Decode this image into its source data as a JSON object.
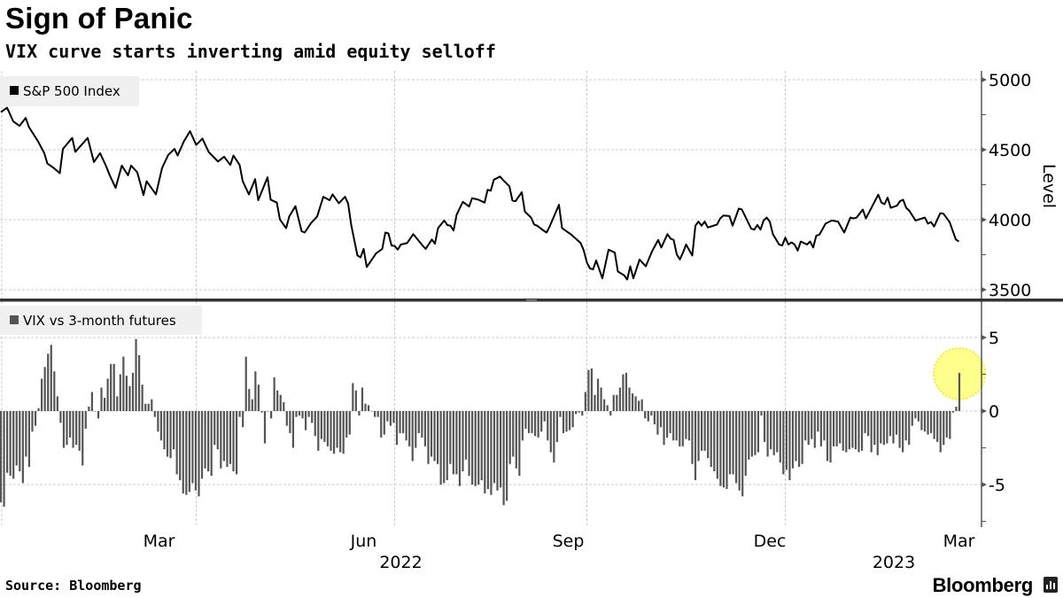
{
  "header": {
    "title": "Sign of Panic",
    "subtitle": "VIX curve starts inverting amid equity selloff"
  },
  "footer": {
    "source": "Source: Bloomberg",
    "brand": "Bloomberg"
  },
  "colors": {
    "line": "#000000",
    "bars": "#555555",
    "highlight": "#ffff66",
    "legend_bg": "#f0f0f0",
    "divider": "#333333"
  },
  "chart_data": [
    {
      "type": "line",
      "legend": "S&P 500 Index",
      "ylabel": "Level",
      "ylim": [
        3450,
        5040
      ],
      "yticks": [
        3500,
        4000,
        4500,
        5000
      ],
      "x_unit": "trading days since Jan 3, 2022",
      "points": [
        [
          0,
          4769
        ],
        [
          2,
          4800
        ],
        [
          4,
          4702
        ],
        [
          6,
          4670
        ],
        [
          8,
          4727
        ],
        [
          9,
          4664
        ],
        [
          12,
          4559
        ],
        [
          14,
          4475
        ],
        [
          15,
          4401
        ],
        [
          17,
          4370
        ],
        [
          19,
          4332
        ],
        [
          20,
          4506
        ],
        [
          23,
          4584
        ],
        [
          24,
          4485
        ],
        [
          28,
          4584
        ],
        [
          30,
          4412
        ],
        [
          32,
          4475
        ],
        [
          34,
          4380
        ],
        [
          35,
          4323
        ],
        [
          37,
          4227
        ],
        [
          39,
          4387
        ],
        [
          41,
          4317
        ],
        [
          42,
          4387
        ],
        [
          44,
          4338
        ],
        [
          46,
          4176
        ],
        [
          47,
          4275
        ],
        [
          50,
          4181
        ],
        [
          52,
          4370
        ],
        [
          54,
          4464
        ],
        [
          56,
          4506
        ],
        [
          57,
          4458
        ],
        [
          59,
          4559
        ],
        [
          61,
          4632
        ],
        [
          63,
          4534
        ],
        [
          65,
          4580
        ],
        [
          67,
          4485
        ],
        [
          70,
          4416
        ],
        [
          72,
          4450
        ],
        [
          74,
          4391
        ],
        [
          75,
          4458
        ],
        [
          77,
          4391
        ],
        [
          78,
          4275
        ],
        [
          80,
          4181
        ],
        [
          82,
          4290
        ],
        [
          83,
          4139
        ],
        [
          86,
          4303
        ],
        [
          87,
          4143
        ],
        [
          89,
          4122
        ],
        [
          90,
          4002
        ],
        [
          92,
          3939
        ],
        [
          93,
          4023
        ],
        [
          95,
          4097
        ],
        [
          97,
          3918
        ],
        [
          98,
          3908
        ],
        [
          100,
          3975
        ],
        [
          102,
          4023
        ],
        [
          104,
          4164
        ],
        [
          106,
          4139
        ],
        [
          107,
          4181
        ],
        [
          109,
          4118
        ],
        [
          111,
          4164
        ],
        [
          112,
          4115
        ],
        [
          113,
          3962
        ],
        [
          115,
          3744
        ],
        [
          116,
          3731
        ],
        [
          117,
          3791
        ],
        [
          118,
          3662
        ],
        [
          121,
          3759
        ],
        [
          123,
          3791
        ],
        [
          124,
          3908
        ],
        [
          125,
          3902
        ],
        [
          126,
          3816
        ],
        [
          127,
          3812
        ],
        [
          128,
          3786
        ],
        [
          129,
          3823
        ],
        [
          131,
          3833
        ],
        [
          133,
          3897
        ],
        [
          136,
          3816
        ],
        [
          137,
          3791
        ],
        [
          139,
          3859
        ],
        [
          140,
          3829
        ],
        [
          141,
          3940
        ],
        [
          143,
          3994
        ],
        [
          144,
          3962
        ],
        [
          145,
          3957
        ],
        [
          146,
          3923
        ],
        [
          147,
          4036
        ],
        [
          149,
          4128
        ],
        [
          151,
          4094
        ],
        [
          152,
          4154
        ],
        [
          154,
          4143
        ],
        [
          156,
          4122
        ],
        [
          157,
          4214
        ],
        [
          158,
          4207
        ],
        [
          159,
          4286
        ],
        [
          161,
          4308
        ],
        [
          162,
          4282
        ],
        [
          164,
          4239
        ],
        [
          165,
          4137
        ],
        [
          166,
          4132
        ],
        [
          168,
          4197
        ],
        [
          169,
          4058
        ],
        [
          171,
          4015
        ],
        [
          172,
          3966
        ],
        [
          173,
          3957
        ],
        [
          175,
          3923
        ],
        [
          176,
          3908
        ],
        [
          177,
          3951
        ],
        [
          180,
          4107
        ],
        [
          181,
          3940
        ],
        [
          184,
          3893
        ],
        [
          187,
          3833
        ],
        [
          188,
          3780
        ],
        [
          189,
          3694
        ],
        [
          190,
          3652
        ],
        [
          191,
          3645
        ],
        [
          192,
          3709
        ],
        [
          194,
          3581
        ],
        [
          196,
          3786
        ],
        [
          198,
          3765
        ],
        [
          199,
          3630
        ],
        [
          201,
          3603
        ],
        [
          202,
          3573
        ],
        [
          203,
          3667
        ],
        [
          204,
          3581
        ],
        [
          206,
          3716
        ],
        [
          208,
          3667
        ],
        [
          210,
          3773
        ],
        [
          212,
          3855
        ],
        [
          213,
          3801
        ],
        [
          215,
          3897
        ],
        [
          216,
          3865
        ],
        [
          217,
          3855
        ],
        [
          218,
          3752
        ],
        [
          219,
          3716
        ],
        [
          220,
          3765
        ],
        [
          221,
          3823
        ],
        [
          223,
          3744
        ],
        [
          224,
          3957
        ],
        [
          225,
          3987
        ],
        [
          226,
          3957
        ],
        [
          227,
          3987
        ],
        [
          228,
          3944
        ],
        [
          231,
          3966
        ],
        [
          232,
          4009
        ],
        [
          233,
          4030
        ],
        [
          235,
          4026
        ],
        [
          236,
          3957
        ],
        [
          238,
          4079
        ],
        [
          239,
          4073
        ],
        [
          242,
          3936
        ],
        [
          243,
          3929
        ],
        [
          244,
          3962
        ],
        [
          245,
          3929
        ],
        [
          246,
          3994
        ],
        [
          247,
          4015
        ],
        [
          248,
          3987
        ],
        [
          249,
          3897
        ],
        [
          251,
          3823
        ],
        [
          252,
          3816
        ],
        [
          253,
          3872
        ],
        [
          254,
          3823
        ],
        [
          255,
          3838
        ],
        [
          256,
          3823
        ],
        [
          257,
          3780
        ],
        [
          258,
          3844
        ],
        [
          260,
          3823
        ],
        [
          261,
          3844
        ],
        [
          262,
          3801
        ],
        [
          263,
          3887
        ],
        [
          264,
          3893
        ],
        [
          266,
          3972
        ],
        [
          268,
          3994
        ],
        [
          270,
          3987
        ],
        [
          272,
          3908
        ],
        [
          274,
          4015
        ],
        [
          275,
          4009
        ],
        [
          276,
          4015
        ],
        [
          278,
          4073
        ],
        [
          279,
          4009
        ],
        [
          281,
          4094
        ],
        [
          282,
          4137
        ],
        [
          283,
          4179
        ],
        [
          284,
          4122
        ],
        [
          285,
          4111
        ],
        [
          286,
          4158
        ],
        [
          287,
          4085
        ],
        [
          289,
          4100
        ],
        [
          290,
          4132
        ],
        [
          291,
          4143
        ],
        [
          292,
          4085
        ],
        [
          293,
          4064
        ],
        [
          295,
          3994
        ],
        [
          298,
          4015
        ],
        [
          299,
          3972
        ],
        [
          300,
          3983
        ],
        [
          301,
          3951
        ],
        [
          303,
          4047
        ],
        [
          304,
          4043
        ],
        [
          306,
          3983
        ],
        [
          308,
          3859
        ],
        [
          309,
          3844
        ]
      ]
    },
    {
      "type": "bar",
      "legend": "VIX vs 3-month futures",
      "ylim": [
        -7.6,
        7.5
      ],
      "yticks": [
        -5,
        0,
        5
      ],
      "x_unit": "trading days since Jan 3, 2022",
      "highlighted_last_value": 2.6,
      "values": [
        -6.2,
        -6.5,
        -4.2,
        -4.4,
        -4.6,
        -3.7,
        -4.1,
        -4.9,
        -3.1,
        -3.8,
        -1.4,
        -1.0,
        0.2,
        2.2,
        3.0,
        3.9,
        4.5,
        2.7,
        1.0,
        -0.8,
        -2.5,
        -2.3,
        -1.8,
        -2.5,
        -2.3,
        -2.7,
        -3.7,
        -1.2,
        0.3,
        1.3,
        0,
        -0.5,
        1.6,
        0.9,
        2.2,
        3.2,
        3.2,
        1.0,
        2.5,
        3.7,
        2.4,
        1.7,
        2.6,
        4.9,
        3.8,
        1.8,
        0.5,
        0.5,
        0.8,
        -0.4,
        -1.4,
        -2.0,
        -2.6,
        -3.1,
        -3.2,
        -2.6,
        -4.3,
        -4.7,
        -5.6,
        -5.7,
        -5.5,
        -4.9,
        -5.4,
        -5.8,
        -4.6,
        -3.9,
        -4.1,
        -4.4,
        -2.3,
        -2.6,
        -3.9,
        -3.4,
        -3.8,
        -3.6,
        -4.1,
        -4.3,
        -0.4,
        -1.1,
        3.7,
        1.5,
        0.8,
        2.7,
        1.8,
        -0.1,
        -2.2,
        0,
        -0.5,
        2.3,
        1.4,
        1.1,
        0.6,
        -1.0,
        -1.5,
        -2.5,
        -0.4,
        -0.3,
        -0.5,
        -1.3,
        -0.4,
        -0.8,
        -1.7,
        -2.7,
        -1.9,
        -2.1,
        -2.4,
        -2.7,
        -2.9,
        -2.5,
        -2.8,
        -2.9,
        -1.8,
        -1.6,
        1.9,
        1.4,
        -0.3,
        1.6,
        0.5,
        0.4,
        0,
        -0.4,
        -0.4,
        -1.8,
        -1.6,
        -0.7,
        -1.0,
        -0.8,
        -2.3,
        -1.5,
        -1.5,
        -2.0,
        -2.4,
        -3.4,
        -2.5,
        -1.5,
        -1.8,
        -2.4,
        -3.6,
        -3.1,
        -3.4,
        -3.6,
        -5.0,
        -4.9,
        -4.7,
        -3.6,
        -4.3,
        -4.3,
        -5.1,
        -4.1,
        -3.3,
        -4.4,
        -5.0,
        -5.1,
        -5.0,
        -4.7,
        -5.6,
        -5.3,
        -5.7,
        -4.9,
        -5.4,
        -5.2,
        -6.4,
        -6.1,
        -3.6,
        -3.1,
        -3.9,
        -4.4,
        -2.0,
        -1.2,
        -1.5,
        -1.5,
        -1.7,
        -1.8,
        -1.4,
        -0.7,
        -2.0,
        -2.8,
        -3.5,
        -2.1,
        -0.4,
        -1.5,
        -1.4,
        -1.3,
        -1.1,
        -0.2,
        -0.1,
        -0.3,
        1.3,
        2.8,
        2.9,
        1.1,
        2.2,
        1.6,
        0.8,
        0.4,
        -0.3,
        1.1,
        1.1,
        1.6,
        2.5,
        2.6,
        1.6,
        1.2,
        1.0,
        0.7,
        0.8,
        -0.5,
        -0.7,
        -0.3,
        -0.9,
        -1.6,
        -1.1,
        -2.3,
        -1.8,
        -1.5,
        -2.0,
        -2.0,
        -2.4,
        -2.4,
        -1.9,
        -2.0,
        -3.6,
        -4.7,
        -3.4,
        -2.7,
        -2.7,
        -3.2,
        -3.8,
        -4.1,
        -4.6,
        -5.1,
        -5.2,
        -5.3,
        -4.3,
        -4.3,
        -4.9,
        -5.4,
        -5.8,
        -4.4,
        -3.3,
        -3.1,
        -3.0,
        -2.8,
        -0.3,
        -2.1,
        -3.1,
        -2.6,
        -3.0,
        -2.8,
        -3.5,
        -4.3,
        -4.0,
        -4.7,
        -3.9,
        -3.4,
        -3.8,
        -3.6,
        -2.0,
        -2.3,
        -1.9,
        -2.5,
        -1.4,
        -2.4,
        -2.0,
        -3.4,
        -3.5,
        -2.4,
        -2.4,
        -2.2,
        -2.7,
        -2.8,
        -2.6,
        -2.5,
        -2.6,
        -2.8,
        -2.7,
        -1.5,
        -1.7,
        -2.8,
        -2.3,
        -3.0,
        -2.2,
        -2.3,
        -2.2,
        -1.7,
        -2.2,
        -1.6,
        -2.5,
        -2.8,
        -2.0,
        -2.3,
        -1.0,
        -0.5,
        -0.7,
        -1.3,
        -1.4,
        -1.6,
        -1.5,
        -1.9,
        -2.1,
        -2.8,
        -2.3,
        -1.8,
        -1.9,
        -0.1,
        0.3,
        2.6
      ]
    }
  ],
  "x_axis": {
    "gridlines_t": [
      63,
      127,
      189,
      253
    ],
    "month_labels": [
      {
        "label": "Mar",
        "t": 51
      },
      {
        "label": "Jun",
        "t": 117
      },
      {
        "label": "Sep",
        "t": 183
      },
      {
        "label": "Dec",
        "t": 248
      },
      {
        "label": "Mar",
        "t": 309
      }
    ],
    "year_labels": [
      {
        "label": "2022",
        "t": 129
      },
      {
        "label": "2023",
        "t": 288
      }
    ]
  }
}
